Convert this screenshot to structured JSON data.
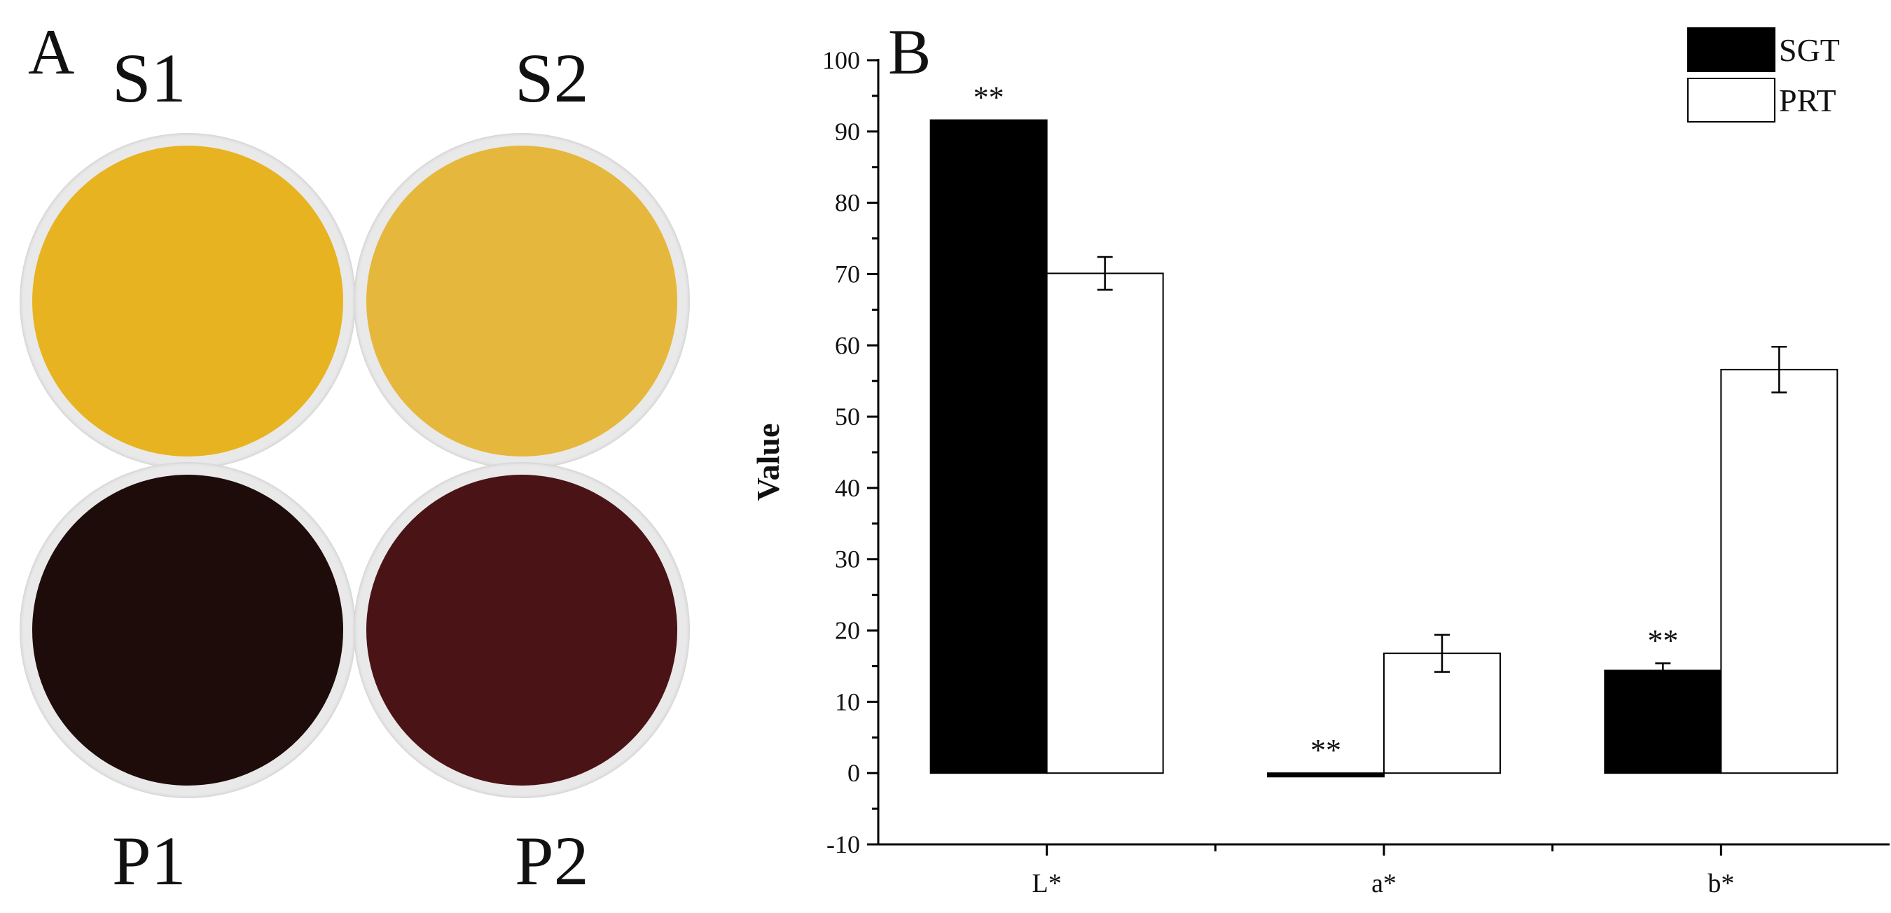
{
  "panel_a": {
    "letter": "A",
    "samples": [
      {
        "label": "S1",
        "color": "#e7b320"
      },
      {
        "label": "S2",
        "color": "#e5b73c"
      },
      {
        "label": "P1",
        "color": "#1e0c0b"
      },
      {
        "label": "P2",
        "color": "#4a1316"
      }
    ]
  },
  "panel_b": {
    "letter": "B"
  },
  "chart_data": {
    "type": "bar",
    "categories": [
      "L*",
      "a*",
      "b*"
    ],
    "series": [
      {
        "name": "SGT",
        "values": [
          91.6,
          -0.5,
          14.4
        ],
        "errors": [
          0,
          0,
          1.0
        ],
        "color": "#000000"
      },
      {
        "name": "PRT",
        "values": [
          70.1,
          16.8,
          56.6
        ],
        "errors": [
          2.3,
          2.6,
          3.2
        ],
        "color": "#ffffff"
      }
    ],
    "significance": [
      {
        "category": "L*",
        "series": "SGT",
        "label": "**"
      },
      {
        "category": "a*",
        "series": "SGT",
        "label": "**"
      },
      {
        "category": "b*",
        "series": "SGT",
        "label": "**"
      }
    ],
    "ylabel": "Value",
    "xlabel": "",
    "ylim": [
      -10,
      100
    ],
    "yticks": [
      -10,
      0,
      10,
      20,
      30,
      40,
      50,
      60,
      70,
      80,
      90,
      100
    ],
    "grid": false,
    "legend": "top-right"
  }
}
